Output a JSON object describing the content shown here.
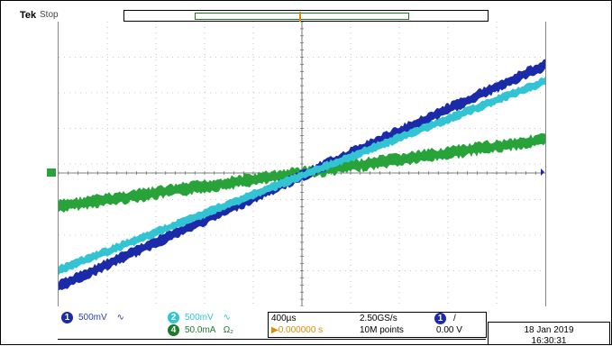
{
  "header": {
    "brand": "Tek",
    "acq_state": "Stop",
    "trigger_marker": "T"
  },
  "channels": [
    {
      "id": "1",
      "scale": "500mV",
      "coupling_icon": "bandwidth-icon",
      "color": "#1b2aa8"
    },
    {
      "id": "2",
      "scale": "500mV",
      "coupling_icon": "bandwidth-icon",
      "color": "#33c4d4"
    },
    {
      "id": "4",
      "scale": "50.0mA",
      "coupling_icon": "ohm-icon",
      "suffix": "Ω₂",
      "color": "#27a33a"
    }
  ],
  "horizontal": {
    "time_div": "400µs",
    "trigger_delay": "▶0.000000 s",
    "sample_rate": "2.50GS/s",
    "record_length": "10M points",
    "trigger_channel": "1",
    "trigger_slope": "/",
    "trigger_level": "0.00 V"
  },
  "datetime": {
    "date": "18 Jan  2019",
    "time": "16:30:31"
  },
  "colors": {
    "ch1": "#1b2aa8",
    "ch2": "#33c4d4",
    "ch4": "#27a33a",
    "trigger": "#e08a00",
    "grid": "#9a9a9a"
  }
}
